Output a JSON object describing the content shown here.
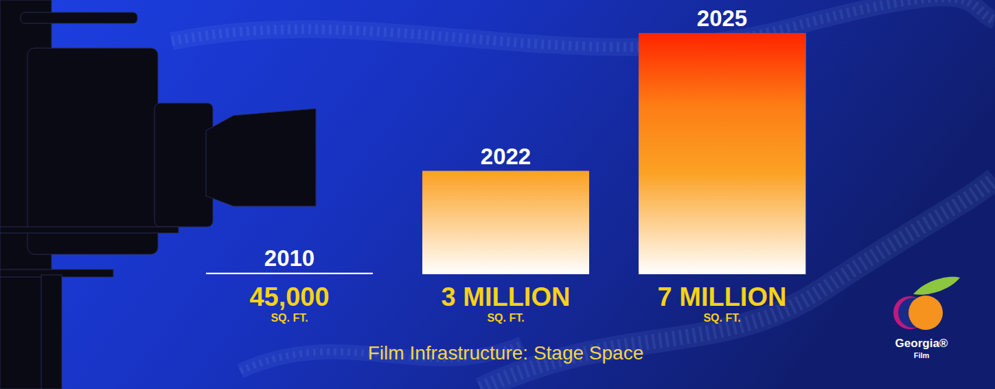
{
  "chart_data": {
    "type": "bar",
    "title": "Film Infrastructure: Stage Space",
    "categories": [
      "2010",
      "2022",
      "2025"
    ],
    "values": [
      45000,
      3000000,
      7000000
    ],
    "value_labels": [
      "45,000",
      "3 MILLION",
      "7 MILLION"
    ],
    "unit": "SQ. FT.",
    "data_labels": true,
    "tick_labels": false,
    "ylim": [
      0,
      7000000
    ],
    "yticks": [
      0,
      7000000
    ],
    "logo": {
      "text": "Georgia®",
      "subtext": "Film"
    }
  }
}
